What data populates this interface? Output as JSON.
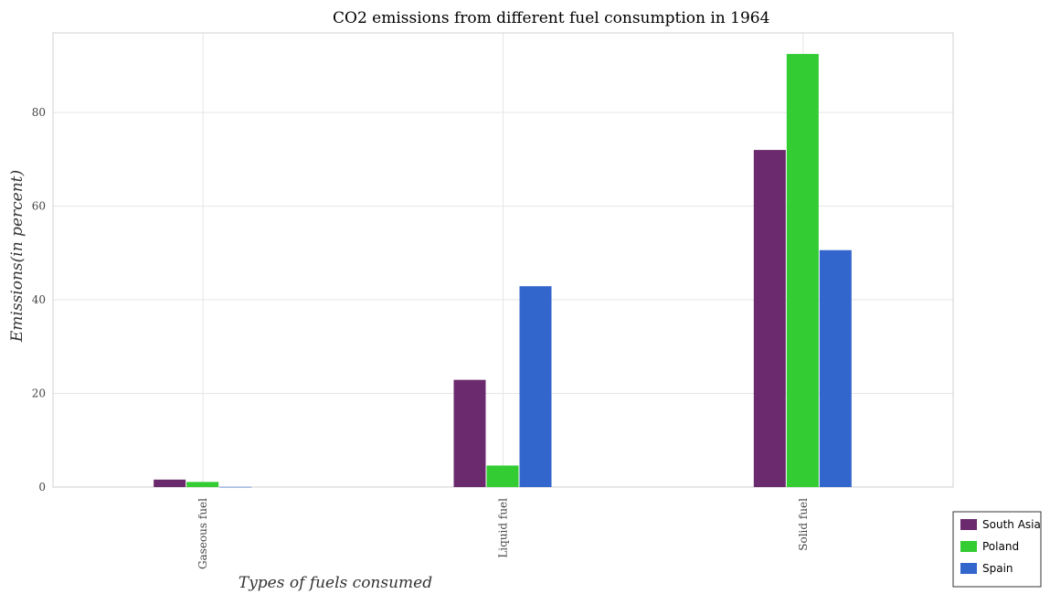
{
  "chart_data": {
    "type": "bar",
    "title": "CO2 emissions from different fuel consumption in 1964",
    "xlabel": "Types of fuels consumed",
    "ylabel": "Emissions(in percent)",
    "categories": [
      "Gaseous fuel",
      "Liquid fuel",
      "Solid fuel"
    ],
    "ylim": [
      0,
      97
    ],
    "yticks": [
      0,
      20,
      40,
      60,
      80
    ],
    "grid": true,
    "legend_position": "bottom-right",
    "series": [
      {
        "name": "South Asia",
        "color": "#6b2a6e",
        "values": [
          1.6,
          22.9,
          72.0
        ]
      },
      {
        "name": "Poland",
        "color": "#33cc33",
        "values": [
          1.1,
          4.6,
          92.5
        ]
      },
      {
        "name": "Spain",
        "color": "#3366cc",
        "values": [
          0.04,
          42.9,
          50.6
        ]
      }
    ]
  }
}
